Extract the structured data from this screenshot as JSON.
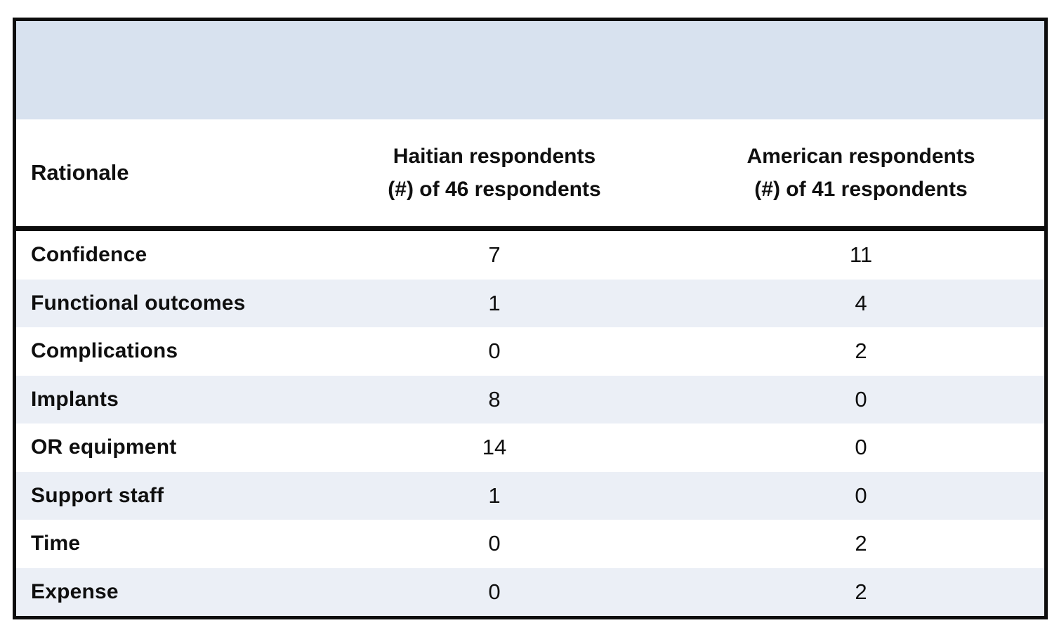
{
  "colors": {
    "band_bg": "#d8e2ef",
    "stripe_bg": "#ebeff6",
    "border_black": "#0d0d0d",
    "text_black": "#0f0f0f"
  },
  "table": {
    "header": {
      "rationale": "Rationale",
      "haitian_line1": "Haitian respondents",
      "haitian_line2": "(#) of 46 respondents",
      "american_line1": "American respondents",
      "american_line2": "(#) of 41 respondents"
    },
    "rows": [
      {
        "rationale": "Confidence",
        "haitian": "7",
        "american": "11"
      },
      {
        "rationale": "Functional outcomes",
        "haitian": "1",
        "american": "4"
      },
      {
        "rationale": "Complications",
        "haitian": "0",
        "american": "2"
      },
      {
        "rationale": "Implants",
        "haitian": "8",
        "american": "0"
      },
      {
        "rationale": "OR equipment",
        "haitian": "14",
        "american": "0"
      },
      {
        "rationale": "Support staff",
        "haitian": "1",
        "american": "0"
      },
      {
        "rationale": "Time",
        "haitian": "0",
        "american": "2"
      },
      {
        "rationale": "Expense",
        "haitian": "0",
        "american": "2"
      }
    ]
  },
  "chart_data": {
    "type": "table",
    "title": "",
    "categories": [
      "Confidence",
      "Functional outcomes",
      "Complications",
      "Implants",
      "OR equipment",
      "Support staff",
      "Time",
      "Expense"
    ],
    "series": [
      {
        "name": "Haitian respondents (#) of 46 respondents",
        "values": [
          7,
          1,
          0,
          8,
          14,
          1,
          0,
          0
        ]
      },
      {
        "name": "American respondents (#) of 41 respondents",
        "values": [
          11,
          4,
          2,
          0,
          0,
          0,
          2,
          2
        ]
      }
    ]
  }
}
